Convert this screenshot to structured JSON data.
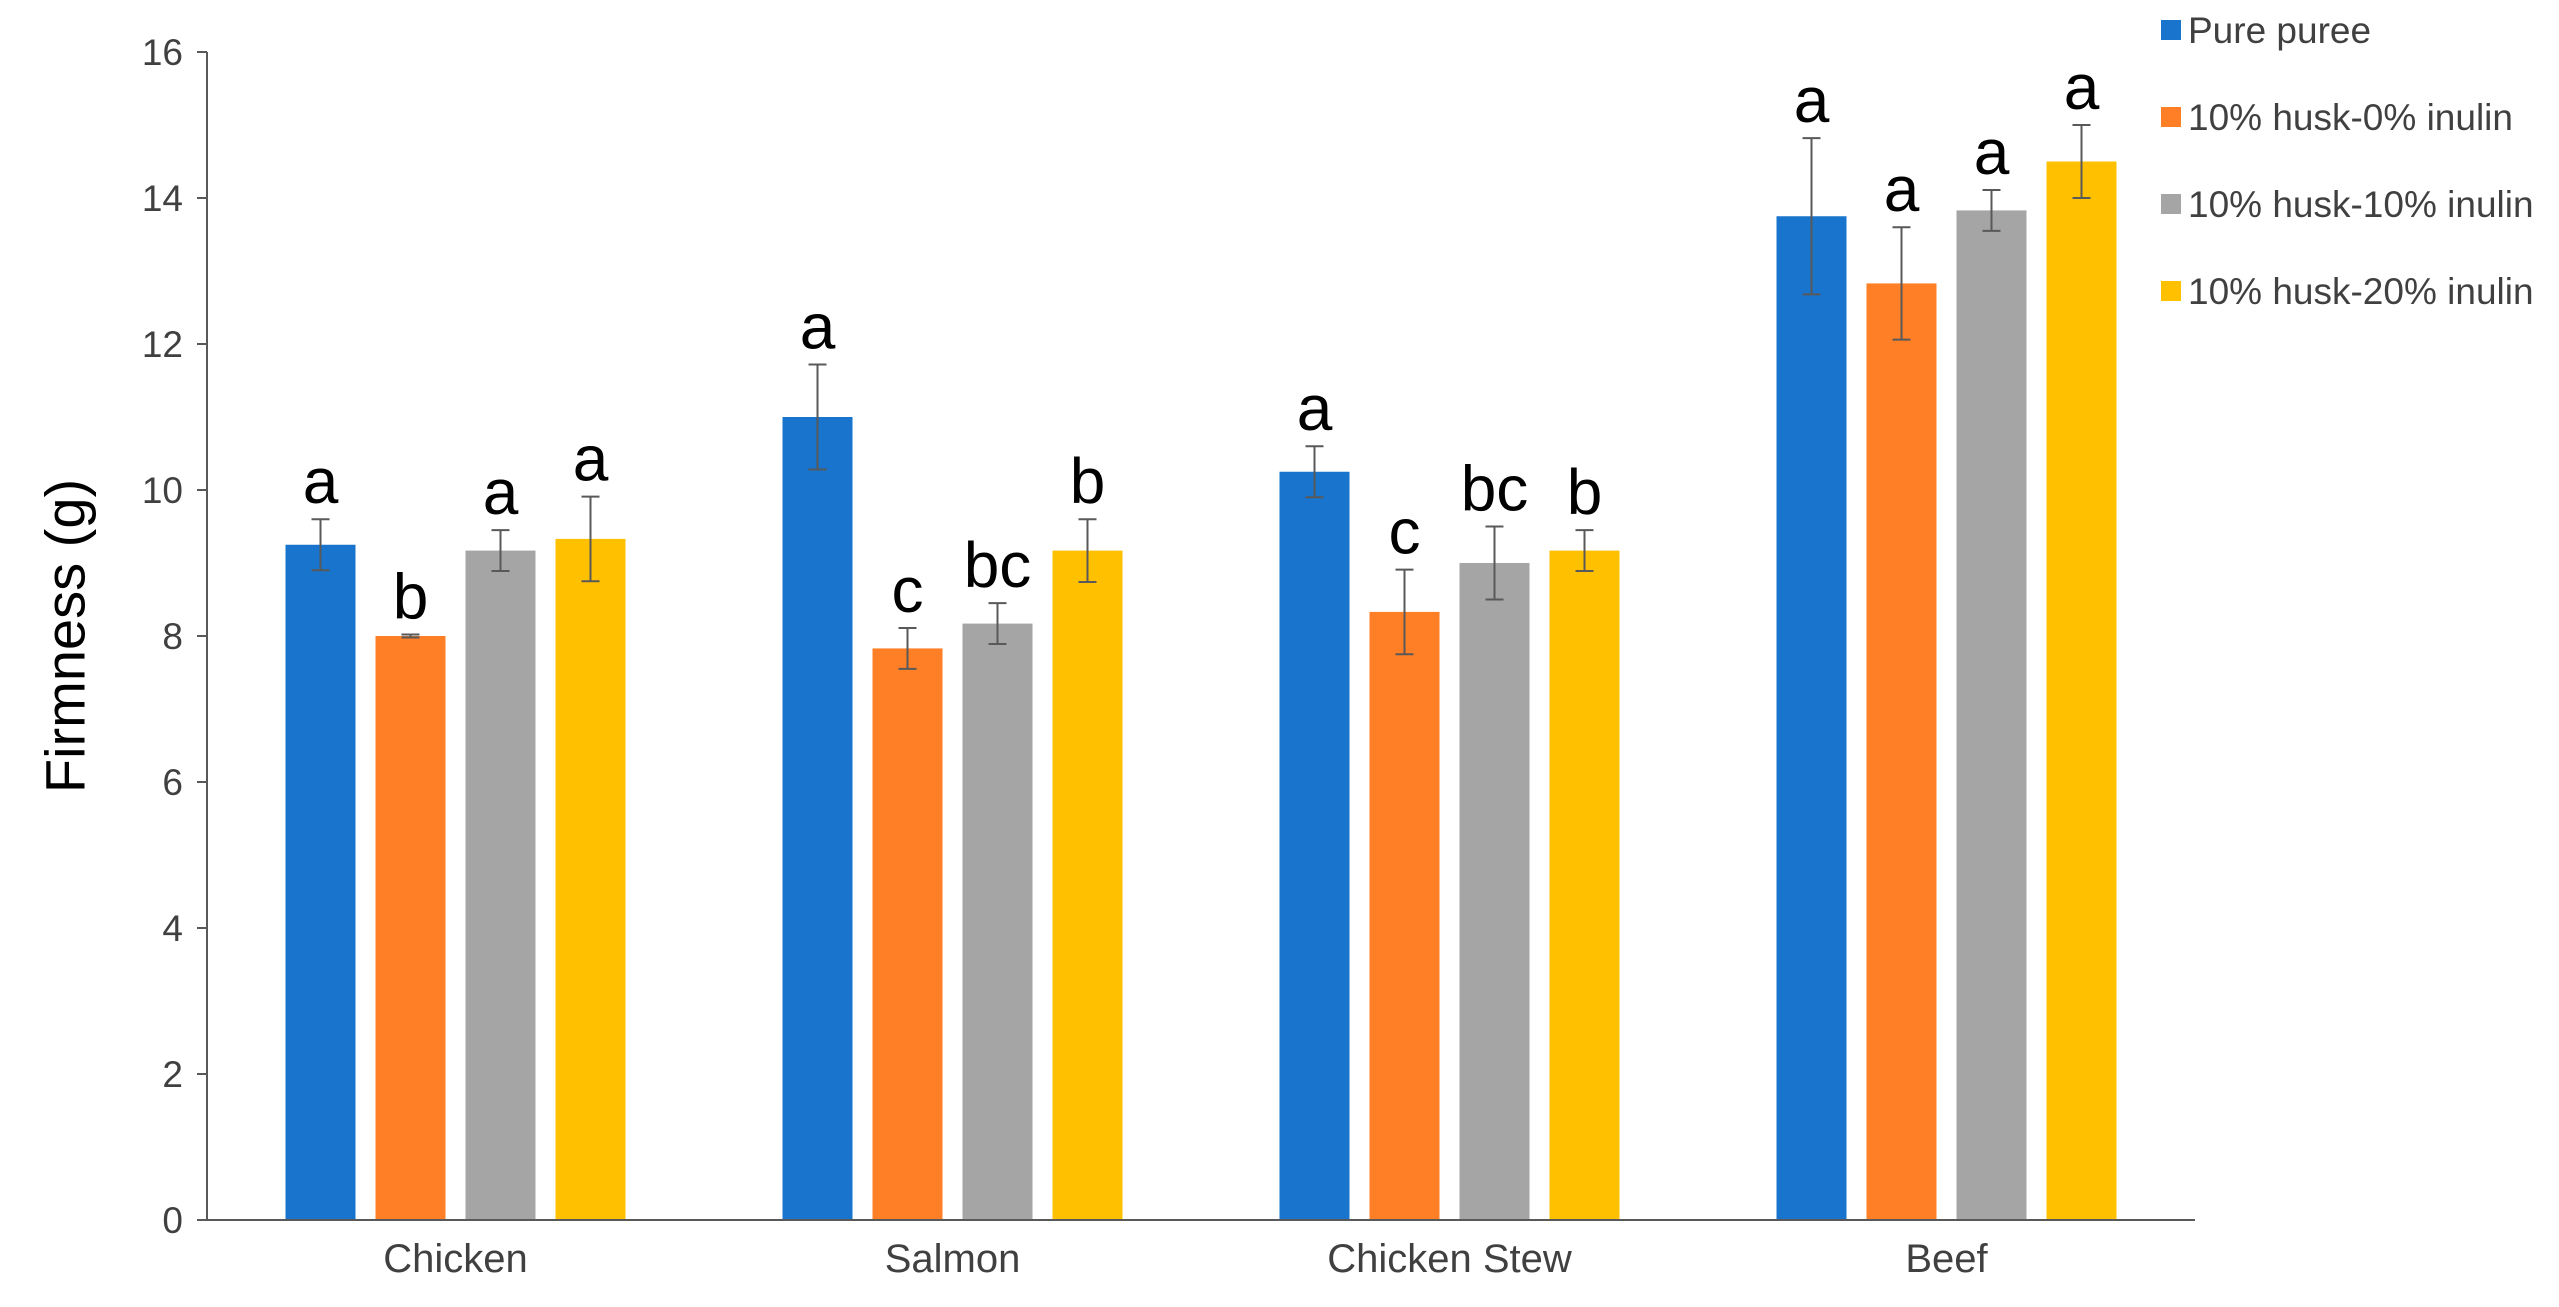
{
  "chart_data": {
    "type": "bar",
    "title": "",
    "xlabel": "",
    "ylabel": "Firmness (g)",
    "ylim": [
      0,
      16
    ],
    "yticks": [
      0,
      2,
      4,
      6,
      8,
      10,
      12,
      14,
      16
    ],
    "grid": false,
    "legend_position": "top-right",
    "categories": [
      "Chicken",
      "Salmon",
      "Chicken Stew",
      "Beef"
    ],
    "series": [
      {
        "name": "Pure puree",
        "color": "#1874CD",
        "values": [
          9.25,
          11.0,
          10.25,
          13.75
        ],
        "errors": [
          0.35,
          0.72,
          0.35,
          1.07
        ],
        "labels": [
          "a",
          "a",
          "a",
          "a"
        ]
      },
      {
        "name": "10% husk-0% inulin",
        "color": "#FF7F27",
        "values": [
          8.0,
          7.83,
          8.33,
          12.83
        ],
        "errors": [
          0.02,
          0.28,
          0.58,
          0.77
        ],
        "labels": [
          "b",
          "c",
          "c",
          "a"
        ]
      },
      {
        "name": "10% husk-10% inulin",
        "color": "#A5A5A5",
        "values": [
          9.17,
          8.17,
          9.0,
          13.83
        ],
        "errors": [
          0.28,
          0.28,
          0.5,
          0.28
        ],
        "labels": [
          "a",
          "bc",
          "bc",
          "a"
        ]
      },
      {
        "name": "10% husk-20% inulin",
        "color": "#FFC000",
        "values": [
          9.33,
          9.17,
          9.17,
          14.5
        ],
        "errors": [
          0.58,
          0.43,
          0.28,
          0.5
        ],
        "labels": [
          "a",
          "b",
          "b",
          "a"
        ]
      }
    ]
  }
}
